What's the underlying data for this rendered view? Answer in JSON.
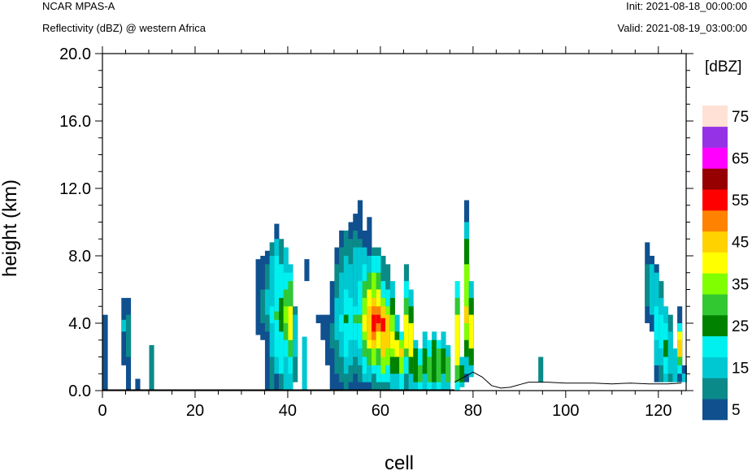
{
  "header": {
    "model": "NCAR MPAS-A",
    "field": "Reflectivity (dBZ) @ western Africa",
    "init": "Init: 2021-08-18_00:00:00",
    "valid": "Valid: 2021-08-19_03:00:00"
  },
  "chart_data": {
    "type": "heatmap",
    "xlabel": "cell",
    "ylabel": "height (km)",
    "xlim": [
      0,
      126
    ],
    "ylim": [
      0,
      20
    ],
    "x_ticks": [
      "0",
      "20",
      "40",
      "60",
      "80",
      "100",
      "120"
    ],
    "y_ticks": [
      "0.0",
      "4.0",
      "8.0",
      "12.0",
      "16.0",
      "20.0"
    ],
    "colorbar": {
      "unit": "[dBZ]",
      "labels": [
        "5",
        "15",
        "25",
        "35",
        "45",
        "55",
        "65",
        "75"
      ],
      "levels": [
        5,
        10,
        15,
        20,
        25,
        30,
        35,
        40,
        45,
        50,
        55,
        60,
        65,
        70,
        75
      ],
      "colors": [
        "#10508f",
        "#0b8a8a",
        "#00c8d2",
        "#00f0f0",
        "#008200",
        "#32c832",
        "#80ff00",
        "#ffff00",
        "#ffd200",
        "#ff8200",
        "#ff0000",
        "#960000",
        "#ff00ff",
        "#9632e6",
        "#ffe1d6"
      ]
    },
    "columns": [
      {
        "x": 0,
        "cells": [
          [
            0.0,
            4.5,
            5
          ]
        ]
      },
      {
        "x": 4,
        "cells": [
          [
            1.5,
            5.5,
            5
          ],
          [
            3.5,
            4.2,
            15
          ]
        ]
      },
      {
        "x": 5,
        "cells": [
          [
            0.0,
            5.5,
            5
          ],
          [
            2.0,
            4.5,
            10
          ]
        ]
      },
      {
        "x": 7,
        "cells": [
          [
            0.0,
            0.7,
            5
          ]
        ]
      },
      {
        "x": 10,
        "cells": [
          [
            0.0,
            2.7,
            10
          ]
        ]
      },
      {
        "x": 33,
        "cells": [
          [
            3.3,
            7.8,
            5
          ]
        ]
      },
      {
        "x": 34,
        "cells": [
          [
            3.0,
            8.0,
            5
          ],
          [
            4.0,
            6.0,
            10
          ]
        ]
      },
      {
        "x": 35,
        "cells": [
          [
            0.0,
            8.3,
            5
          ],
          [
            3.5,
            7.5,
            10
          ],
          [
            4.5,
            6.0,
            15
          ]
        ]
      },
      {
        "x": 36,
        "cells": [
          [
            0.0,
            8.8,
            10
          ],
          [
            2.0,
            8.0,
            15
          ],
          [
            4.0,
            5.0,
            20
          ]
        ]
      },
      {
        "x": 37,
        "cells": [
          [
            0.0,
            9.9,
            5
          ],
          [
            1.0,
            9.0,
            15
          ],
          [
            2.0,
            8.0,
            20
          ],
          [
            4.2,
            4.7,
            30
          ]
        ]
      },
      {
        "x": 38,
        "cells": [
          [
            0.0,
            9.0,
            10
          ],
          [
            1.0,
            7.5,
            20
          ],
          [
            3.5,
            5.5,
            25
          ]
        ]
      },
      {
        "x": 39,
        "cells": [
          [
            0.0,
            8.5,
            15
          ],
          [
            2.0,
            7.0,
            20
          ],
          [
            3.0,
            6.0,
            30
          ],
          [
            4.0,
            5.0,
            35
          ]
        ]
      },
      {
        "x": 40,
        "cells": [
          [
            0.0,
            7.5,
            15
          ],
          [
            1.0,
            7.0,
            20
          ],
          [
            2.0,
            6.5,
            30
          ],
          [
            3.0,
            5.0,
            40
          ]
        ]
      },
      {
        "x": 41,
        "cells": [
          [
            0.5,
            5.0,
            10
          ],
          [
            2.0,
            4.5,
            15
          ]
        ]
      },
      {
        "x": 43,
        "cells": [
          [
            0.0,
            3.2,
            15
          ]
        ]
      },
      {
        "x": 43.5,
        "cells": [
          [
            6.5,
            7.8,
            5
          ]
        ]
      },
      {
        "x": 46,
        "cells": [
          [
            4.0,
            4.5,
            5
          ]
        ]
      },
      {
        "x": 47,
        "cells": [
          [
            4.0,
            4.5,
            5
          ],
          [
            3.0,
            4.0,
            5
          ]
        ]
      },
      {
        "x": 48,
        "cells": [
          [
            1.5,
            4.5,
            5
          ]
        ]
      },
      {
        "x": 49,
        "cells": [
          [
            0.0,
            6.5,
            5
          ],
          [
            2.5,
            4.0,
            10
          ]
        ]
      },
      {
        "x": 50,
        "cells": [
          [
            0.0,
            8.5,
            5
          ],
          [
            1.0,
            7.5,
            10
          ],
          [
            3.0,
            5.5,
            15
          ]
        ]
      },
      {
        "x": 51,
        "cells": [
          [
            0.0,
            9.5,
            5
          ],
          [
            0.5,
            8.5,
            10
          ],
          [
            2.0,
            7.0,
            15
          ],
          [
            3.5,
            4.5,
            20
          ]
        ]
      },
      {
        "x": 52,
        "cells": [
          [
            0.0,
            9.5,
            10
          ],
          [
            1.0,
            8.0,
            15
          ],
          [
            2.0,
            6.0,
            20
          ],
          [
            4.0,
            4.5,
            25
          ]
        ]
      },
      {
        "x": 53,
        "cells": [
          [
            0.0,
            10.0,
            5
          ],
          [
            0.5,
            9.0,
            10
          ],
          [
            1.5,
            7.5,
            15
          ],
          [
            3.0,
            5.5,
            20
          ]
        ]
      },
      {
        "x": 54,
        "cells": [
          [
            0.0,
            10.5,
            5
          ],
          [
            1.0,
            9.5,
            10
          ],
          [
            2.0,
            8.5,
            15
          ],
          [
            3.0,
            5.0,
            20
          ],
          [
            4.0,
            4.5,
            30
          ]
        ]
      },
      {
        "x": 55,
        "cells": [
          [
            0.0,
            11.3,
            5
          ],
          [
            0.5,
            9.0,
            10
          ],
          [
            1.5,
            8.5,
            15
          ],
          [
            2.5,
            6.5,
            20
          ],
          [
            4.0,
            4.5,
            30
          ]
        ]
      },
      {
        "x": 56,
        "cells": [
          [
            0.0,
            9.5,
            5
          ],
          [
            0.5,
            8.5,
            15
          ],
          [
            1.0,
            7.5,
            20
          ],
          [
            2.0,
            6.5,
            30
          ],
          [
            3.0,
            5.5,
            35
          ],
          [
            3.5,
            4.5,
            40
          ]
        ]
      },
      {
        "x": 57,
        "cells": [
          [
            0.0,
            10.3,
            5
          ],
          [
            0.5,
            8.0,
            15
          ],
          [
            1.5,
            7.0,
            30
          ],
          [
            2.5,
            6.0,
            40
          ],
          [
            3.0,
            5.0,
            45
          ]
        ]
      },
      {
        "x": 58,
        "cells": [
          [
            0.0,
            8.5,
            10
          ],
          [
            1.0,
            8.0,
            20
          ],
          [
            1.5,
            7.0,
            35
          ],
          [
            2.5,
            5.5,
            45
          ],
          [
            3.0,
            5.0,
            50
          ],
          [
            3.5,
            4.5,
            55
          ]
        ]
      },
      {
        "x": 59,
        "cells": [
          [
            0.0,
            8.5,
            10
          ],
          [
            0.5,
            8.0,
            20
          ],
          [
            1.5,
            7.0,
            30
          ],
          [
            2.5,
            6.0,
            40
          ],
          [
            3.5,
            5.0,
            50
          ],
          [
            4.0,
            4.5,
            55
          ]
        ]
      },
      {
        "x": 60,
        "cells": [
          [
            0.0,
            8.0,
            10
          ],
          [
            0.5,
            6.5,
            20
          ],
          [
            1.0,
            5.5,
            35
          ],
          [
            2.0,
            5.0,
            45
          ],
          [
            3.5,
            4.3,
            55
          ]
        ]
      },
      {
        "x": 61,
        "cells": [
          [
            0.0,
            7.5,
            10
          ],
          [
            0.5,
            6.0,
            20
          ],
          [
            1.5,
            5.0,
            35
          ],
          [
            2.5,
            4.5,
            45
          ]
        ]
      },
      {
        "x": 62,
        "cells": [
          [
            0.0,
            6.5,
            15
          ],
          [
            1.0,
            5.5,
            25
          ],
          [
            2.0,
            4.5,
            35
          ],
          [
            2.5,
            3.5,
            40
          ]
        ]
      },
      {
        "x": 63,
        "cells": [
          [
            0.0,
            4.5,
            15
          ],
          [
            1.0,
            3.5,
            25
          ],
          [
            2.0,
            3.0,
            40
          ]
        ]
      },
      {
        "x": 64,
        "cells": [
          [
            0.0,
            3.5,
            20
          ],
          [
            1.0,
            3.0,
            35
          ],
          [
            2.0,
            2.5,
            45
          ]
        ]
      },
      {
        "x": 65,
        "cells": [
          [
            0.0,
            7.5,
            10
          ],
          [
            1.0,
            6.5,
            20
          ],
          [
            2.0,
            5.5,
            30
          ],
          [
            2.5,
            4.5,
            40
          ]
        ]
      },
      {
        "x": 66,
        "cells": [
          [
            0.0,
            6.0,
            15
          ],
          [
            1.0,
            5.0,
            25
          ],
          [
            2.0,
            4.0,
            40
          ]
        ]
      },
      {
        "x": 67,
        "cells": [
          [
            0.0,
            3.0,
            15
          ],
          [
            0.5,
            2.5,
            25
          ]
        ]
      },
      {
        "x": 68,
        "cells": [
          [
            0.0,
            2.5,
            20
          ],
          [
            0.5,
            1.5,
            30
          ]
        ]
      },
      {
        "x": 69,
        "cells": [
          [
            0.0,
            3.5,
            15
          ],
          [
            1.0,
            2.5,
            25
          ]
        ]
      },
      {
        "x": 70,
        "cells": [
          [
            0.0,
            3.0,
            20
          ],
          [
            0.5,
            2.0,
            30
          ]
        ]
      },
      {
        "x": 71,
        "cells": [
          [
            0.0,
            3.5,
            15
          ],
          [
            0.5,
            3.0,
            25
          ]
        ]
      },
      {
        "x": 72,
        "cells": [
          [
            0.0,
            3.0,
            20
          ],
          [
            0.5,
            2.5,
            30
          ]
        ]
      },
      {
        "x": 73,
        "cells": [
          [
            0.0,
            3.5,
            15
          ],
          [
            1.0,
            2.5,
            25
          ]
        ]
      },
      {
        "x": 74,
        "cells": [
          [
            0.0,
            2.7,
            15
          ],
          [
            0.5,
            2.0,
            30
          ]
        ]
      },
      {
        "x": 76,
        "cells": [
          [
            0.0,
            6.5,
            20
          ],
          [
            0.5,
            5.5,
            30
          ],
          [
            1.5,
            4.5,
            40
          ]
        ]
      },
      {
        "x": 77,
        "cells": [
          [
            0.2,
            2.0,
            15
          ],
          [
            0.5,
            1.5,
            25
          ]
        ]
      },
      {
        "x": 78,
        "cells": [
          [
            0.5,
            11.3,
            5
          ],
          [
            1.0,
            10.0,
            15
          ],
          [
            2.0,
            9.0,
            25
          ],
          [
            3.0,
            7.5,
            35
          ],
          [
            4.0,
            5.0,
            45
          ]
        ]
      },
      {
        "x": 79,
        "cells": [
          [
            0.8,
            6.5,
            15
          ],
          [
            1.5,
            5.5,
            25
          ],
          [
            2.5,
            4.5,
            40
          ]
        ]
      },
      {
        "x": 94,
        "cells": [
          [
            0.5,
            2.0,
            10
          ]
        ]
      },
      {
        "x": 117,
        "cells": [
          [
            4.0,
            8.8,
            5
          ],
          [
            5.0,
            7.5,
            10
          ]
        ]
      },
      {
        "x": 118,
        "cells": [
          [
            3.5,
            8.0,
            5
          ],
          [
            4.5,
            7.5,
            15
          ]
        ]
      },
      {
        "x": 119,
        "cells": [
          [
            0.5,
            7.5,
            5
          ],
          [
            1.5,
            7.0,
            15
          ],
          [
            3.0,
            5.0,
            20
          ]
        ]
      },
      {
        "x": 120,
        "cells": [
          [
            0.5,
            6.5,
            10
          ],
          [
            1.5,
            5.5,
            15
          ],
          [
            2.5,
            4.5,
            20
          ]
        ]
      },
      {
        "x": 121,
        "cells": [
          [
            0.5,
            5.0,
            15
          ],
          [
            1.0,
            4.0,
            20
          ],
          [
            2.0,
            3.0,
            25
          ]
        ]
      },
      {
        "x": 122,
        "cells": [
          [
            0.5,
            4.5,
            10
          ],
          [
            1.0,
            3.5,
            15
          ]
        ]
      },
      {
        "x": 123,
        "cells": [
          [
            0.5,
            2.5,
            15
          ]
        ]
      },
      {
        "x": 124,
        "cells": [
          [
            0.5,
            5.0,
            5
          ],
          [
            1.0,
            4.0,
            20
          ],
          [
            1.5,
            3.5,
            30
          ],
          [
            2.0,
            3.0,
            45
          ],
          [
            3.0,
            3.5,
            40
          ]
        ]
      },
      {
        "x": 125,
        "cells": [
          [
            1.0,
            1.5,
            5
          ],
          [
            0.5,
            1.0,
            15
          ]
        ]
      }
    ],
    "terrain": [
      [
        76,
        0.5
      ],
      [
        78,
        0.8
      ],
      [
        80,
        1.1
      ],
      [
        82,
        0.8
      ],
      [
        84,
        0.3
      ],
      [
        86,
        0.15
      ],
      [
        88,
        0.2
      ],
      [
        90,
        0.35
      ],
      [
        92,
        0.5
      ],
      [
        96,
        0.5
      ],
      [
        100,
        0.45
      ],
      [
        106,
        0.45
      ],
      [
        110,
        0.4
      ],
      [
        114,
        0.45
      ],
      [
        118,
        0.4
      ],
      [
        122,
        0.4
      ],
      [
        125,
        0.45
      ]
    ]
  }
}
